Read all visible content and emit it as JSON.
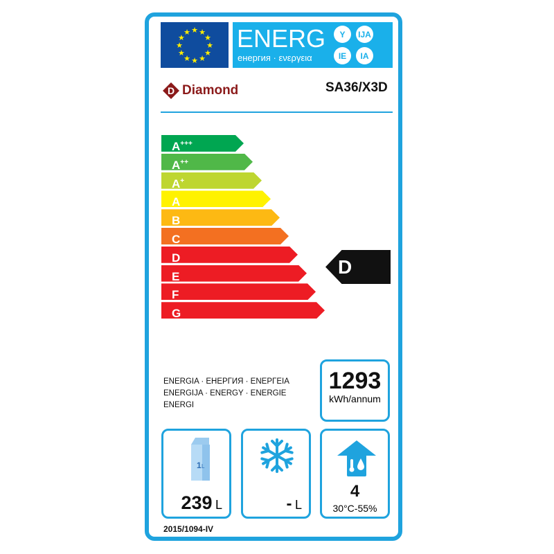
{
  "header": {
    "energy_title": "ENERG",
    "energy_subtitle": "енергия · ενεργεια",
    "language_suffixes": [
      "Y",
      "IJA",
      "IE",
      "IA"
    ]
  },
  "supplier": {
    "brand": "Diamond",
    "model": "SA36/X3D"
  },
  "scale": {
    "classes": [
      {
        "letter": "A",
        "plus": "+++",
        "color": "#00a651"
      },
      {
        "letter": "A",
        "plus": "++",
        "color": "#50b848"
      },
      {
        "letter": "A",
        "plus": "+",
        "color": "#bed630"
      },
      {
        "letter": "A",
        "plus": "",
        "color": "#fff200"
      },
      {
        "letter": "B",
        "plus": "",
        "color": "#fdb913"
      },
      {
        "letter": "C",
        "plus": "",
        "color": "#f37021"
      },
      {
        "letter": "D",
        "plus": "",
        "color": "#ed1c24"
      },
      {
        "letter": "E",
        "plus": "",
        "color": "#ed1c24"
      },
      {
        "letter": "F",
        "plus": "",
        "color": "#ed1c24"
      },
      {
        "letter": "G",
        "plus": "",
        "color": "#ed1c24"
      }
    ],
    "rated_class": "D"
  },
  "energy_words": [
    "ENERGIA · ЕНЕРГИЯ · ΕΝΕΡΓΕΙΑ",
    "ENERGIJA · ENERGY · ENERGIE",
    "ENERGI"
  ],
  "consumption": {
    "value": "1293",
    "unit": "kWh/annum"
  },
  "chilled_volume": {
    "value": "239",
    "unit": "L",
    "icon_label": "1L"
  },
  "frozen_volume": {
    "value": "-",
    "unit": "L"
  },
  "climate": {
    "class": "4",
    "conditions": "30°C-55%"
  },
  "regulation": "2015/1094-IV",
  "colors": {
    "frame": "#1fa3de",
    "flag": "#0f4c9e",
    "band": "#1ab0ea"
  }
}
